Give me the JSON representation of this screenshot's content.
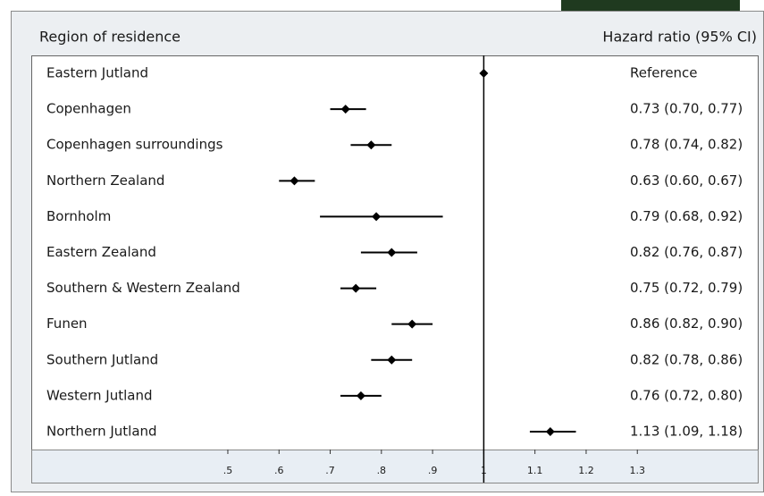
{
  "chart_data": {
    "type": "forest",
    "category_header": "Region of residence",
    "value_header": "Hazard ratio (95% CI)",
    "categories": [
      "Eastern Jutland",
      "Copenhagen",
      "Copenhagen surroundings",
      "Northern Zealand",
      "Bornholm",
      "Eastern Zealand",
      "Southern & Western Zealand",
      "Funen",
      "Southern Jutland",
      "Western Jutland",
      "Northern Jutland"
    ],
    "values": [
      1,
      0.73,
      0.78,
      0.63,
      0.79,
      0.82,
      0.75,
      0.86,
      0.82,
      0.76,
      1.13
    ],
    "lower": [
      null,
      0.7,
      0.74,
      0.6,
      0.68,
      0.76,
      0.72,
      0.82,
      0.78,
      0.72,
      1.09
    ],
    "upper": [
      null,
      0.77,
      0.82,
      0.67,
      0.92,
      0.87,
      0.79,
      0.9,
      0.86,
      0.8,
      1.18
    ],
    "value_labels": [
      "Reference",
      "0.73 (0.70, 0.77)",
      "0.78 (0.74, 0.82)",
      "0.63 (0.60, 0.67)",
      "0.79 (0.68, 0.92)",
      "0.82 (0.76, 0.87)",
      "0.75 (0.72, 0.79)",
      "0.86 (0.82, 0.90)",
      "0.82 (0.78, 0.86)",
      "0.76 (0.72, 0.80)",
      "1.13 (1.09, 1.18)"
    ],
    "reference_line": 1,
    "color": "#000000",
    "xlim": [
      0.116,
      1.537
    ],
    "xticks": [
      {
        "value": 0.5,
        "label": ".5"
      },
      {
        "value": 0.6,
        "label": ".6"
      },
      {
        "value": 0.7,
        "label": ".7"
      },
      {
        "value": 0.8,
        "label": ".8"
      },
      {
        "value": 0.9,
        "label": ".9"
      },
      1,
      1.1,
      1.2,
      1.3
    ]
  }
}
